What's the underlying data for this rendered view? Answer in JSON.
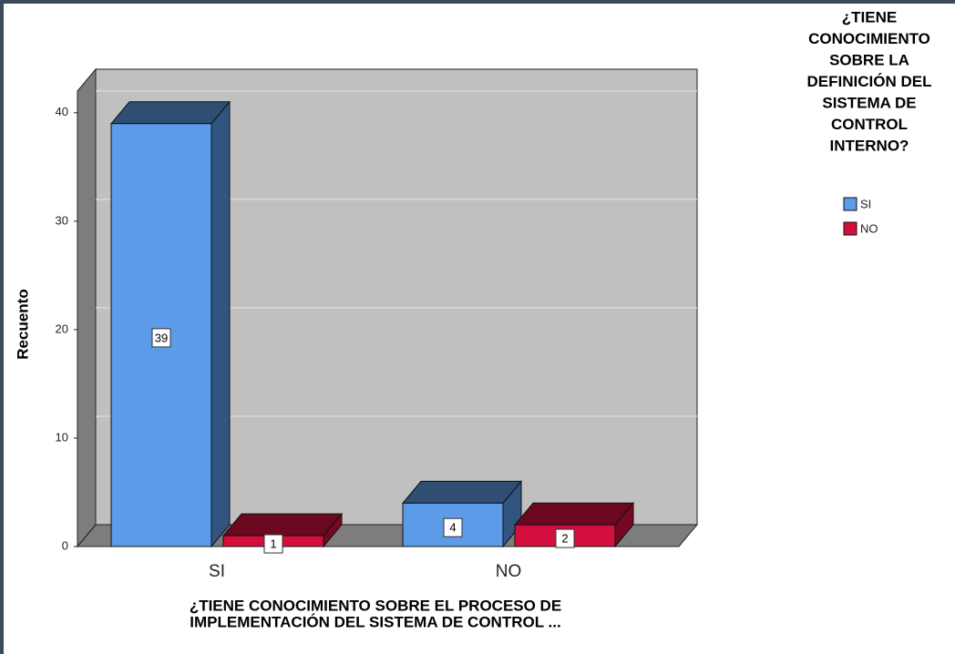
{
  "chart_data": {
    "type": "bar3d",
    "ylabel": "Recuento",
    "xlabel": [
      "¿TIENE CONOCIMIENTO SOBRE EL PROCESO DE",
      "IMPLEMENTACIÓN DEL SISTEMA DE CONTROL ..."
    ],
    "legend_title": [
      "¿TIENE",
      "CONOCIMIENTO",
      "SOBRE LA",
      "DEFINICIÓN DEL",
      "SISTEMA DE",
      "CONTROL",
      "INTERNO?"
    ],
    "categories": [
      "SI",
      "NO"
    ],
    "series": [
      {
        "name": "SI",
        "color": "#5b9be8",
        "values": [
          39,
          4
        ]
      },
      {
        "name": "NO",
        "color": "#d40f3d",
        "values": [
          1,
          2
        ]
      }
    ],
    "ylim": [
      0,
      42
    ],
    "yticks": [
      0,
      10,
      20,
      30,
      40
    ],
    "grid": true,
    "legend": "right"
  }
}
